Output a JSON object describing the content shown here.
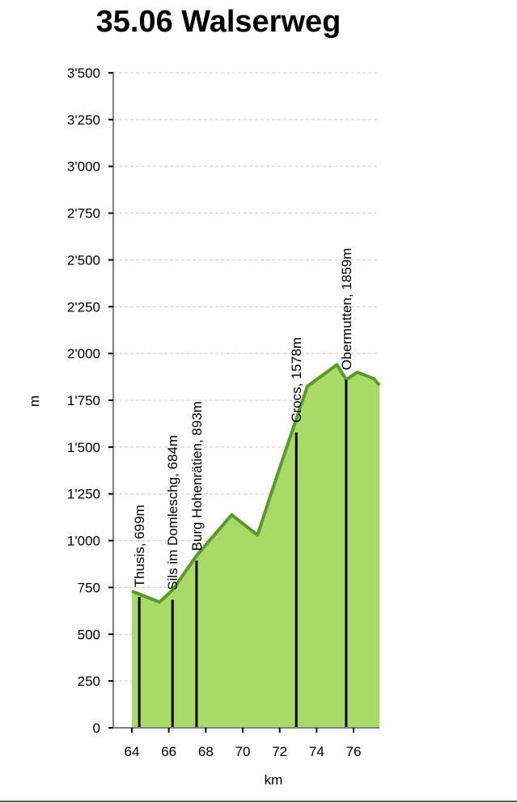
{
  "chart_data": {
    "type": "area",
    "title": "35.06 Walserweg",
    "xlabel": "km",
    "ylabel": "m",
    "xlim": [
      64,
      77.4
    ],
    "ylim": [
      0,
      3500
    ],
    "x_ticks": [
      64,
      66,
      68,
      70,
      72,
      74,
      76
    ],
    "x_tick_labels": [
      "64",
      "66",
      "68",
      "70",
      "72",
      "74",
      "76"
    ],
    "y_ticks": [
      0,
      250,
      500,
      750,
      1000,
      1250,
      1500,
      1750,
      2000,
      2250,
      2500,
      2750,
      3000,
      3250,
      3500
    ],
    "y_tick_labels": [
      "0",
      "250",
      "500",
      "750",
      "1'000",
      "1'250",
      "1'500",
      "1'750",
      "2'000",
      "2'250",
      "2'500",
      "2'750",
      "3'000",
      "3'250",
      "3'500"
    ],
    "grid": true,
    "colors": {
      "fill": "#a8da68",
      "line": "#5b9a2a",
      "grid": "#c8c8c8",
      "marker": "#000000"
    },
    "profile": [
      {
        "x": 64.0,
        "y": 730
      },
      {
        "x": 65.5,
        "y": 672
      },
      {
        "x": 66.2,
        "y": 736
      },
      {
        "x": 67.5,
        "y": 920
      },
      {
        "x": 69.4,
        "y": 1138
      },
      {
        "x": 70.8,
        "y": 1030
      },
      {
        "x": 71.8,
        "y": 1330
      },
      {
        "x": 73.5,
        "y": 1825
      },
      {
        "x": 75.1,
        "y": 1940
      },
      {
        "x": 75.6,
        "y": 1860
      },
      {
        "x": 76.2,
        "y": 1900
      },
      {
        "x": 77.1,
        "y": 1865
      },
      {
        "x": 77.4,
        "y": 1830
      }
    ],
    "stations": [
      {
        "x": 64.4,
        "y": 699,
        "label": "Thusis, 699m"
      },
      {
        "x": 66.2,
        "y": 684,
        "label": "Sils im Domleschg, 684m"
      },
      {
        "x": 67.5,
        "y": 893,
        "label": "Burg Hohenrätien, 893m"
      },
      {
        "x": 72.9,
        "y": 1578,
        "label": "Crocs, 1578m"
      },
      {
        "x": 75.6,
        "y": 1859,
        "label": "Obermutten, 1859m"
      }
    ]
  }
}
